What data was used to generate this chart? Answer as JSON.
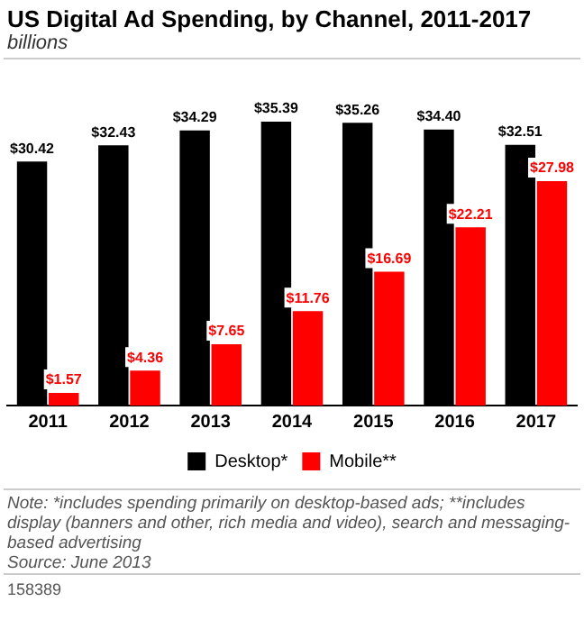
{
  "chart_data": {
    "type": "bar",
    "title": "US Digital Ad Spending, by Channel, 2011-2017",
    "subtitle": "billions",
    "categories": [
      "2011",
      "2012",
      "2013",
      "2014",
      "2015",
      "2016",
      "2017"
    ],
    "series": [
      {
        "name": "Desktop*",
        "color": "#000000",
        "values": [
          30.42,
          32.43,
          34.29,
          35.39,
          35.26,
          34.4,
          32.51
        ],
        "value_labels": [
          "$30.42",
          "$32.43",
          "$34.29",
          "$35.39",
          "$35.26",
          "$34.40",
          "$32.51"
        ]
      },
      {
        "name": "Mobile**",
        "color": "#ff0000",
        "values": [
          1.57,
          4.36,
          7.65,
          11.76,
          16.69,
          22.21,
          27.98
        ],
        "value_labels": [
          "$1.57",
          "$4.36",
          "$7.65",
          "$11.76",
          "$16.69",
          "$22.21",
          "$27.98"
        ]
      }
    ],
    "grid": false,
    "legend": "bottom",
    "annotations": [
      "Note: *includes spending primarily on desktop-based ads; **includes display (banners and other, rich media and video), search and messaging-based advertising",
      "Source: June 2013",
      "158389"
    ]
  }
}
